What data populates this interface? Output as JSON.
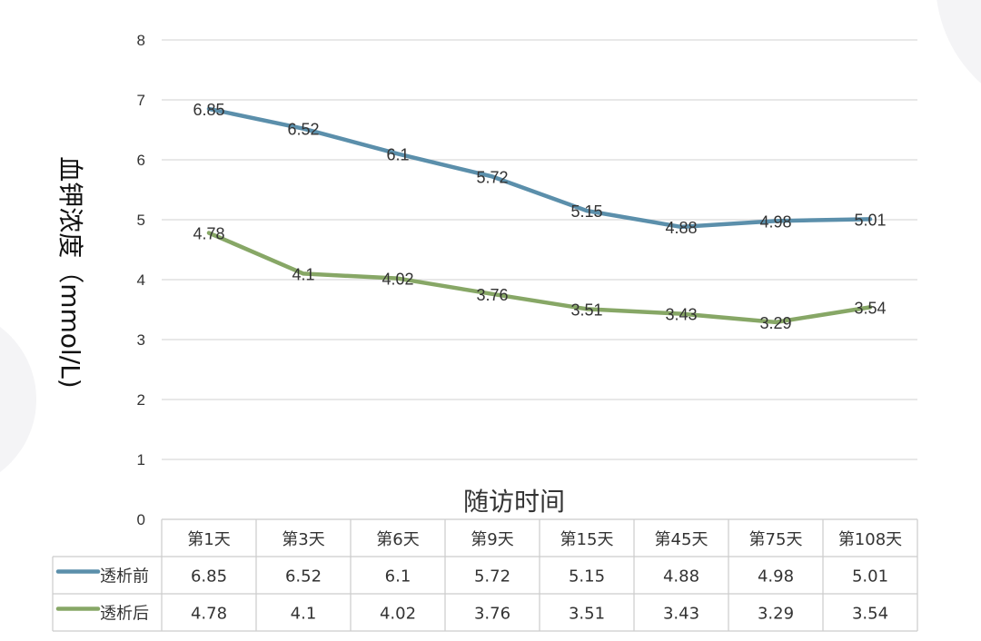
{
  "chart_data": {
    "type": "line",
    "categories": [
      "第1天",
      "第3天",
      "第6天",
      "第9天",
      "第15天",
      "第45天",
      "第75天",
      "第108天"
    ],
    "series": [
      {
        "name": "透析前",
        "values": [
          6.85,
          6.52,
          6.1,
          5.72,
          5.15,
          4.88,
          4.98,
          5.01
        ],
        "color": "#5b8fab"
      },
      {
        "name": "透析后",
        "values": [
          4.78,
          4.1,
          4.02,
          3.76,
          3.51,
          3.43,
          3.29,
          3.54
        ],
        "color": "#87a766"
      }
    ],
    "value_labels": [
      [
        "6.85",
        "6.52",
        "6.1",
        "5.72",
        "5.15",
        "4.88",
        "4.98",
        "5.01"
      ],
      [
        "4.78",
        "4.1",
        "4.02",
        "3.76",
        "3.51",
        "3.43",
        "3.29",
        "3.54"
      ]
    ],
    "yticks": [
      0,
      1,
      2,
      3,
      4,
      5,
      6,
      7,
      8
    ],
    "ytick_labels": [
      "0",
      "1",
      "2",
      "3",
      "4",
      "5",
      "6",
      "7",
      "8"
    ],
    "ylim": [
      0,
      8
    ],
    "ylabel": "血钾浓度（mmol/L)",
    "xlabel": "随访时间",
    "grid": true,
    "data_table": true
  }
}
